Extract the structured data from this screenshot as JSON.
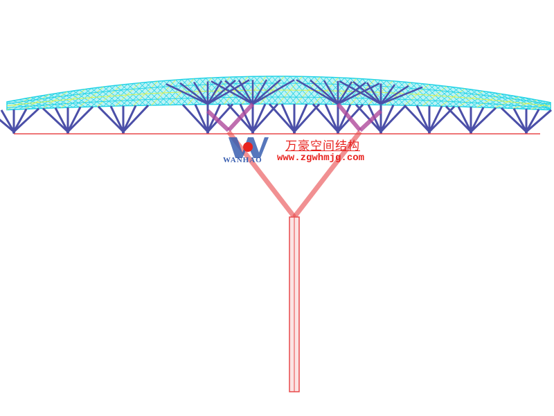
{
  "logo": {
    "brand_en": "WANHAO",
    "brand_cn": "万豪空间结构",
    "website": "www.zgwhmjg.com"
  },
  "colors": {
    "roof_mesh": "#22d3e6",
    "roof_highlight": "#d9f04a",
    "struts": "#4b4fa8",
    "column": "#e8484a",
    "branches": "#b04a9c",
    "logo_red": "#e8231f",
    "logo_blue": "#3a5fb0"
  }
}
